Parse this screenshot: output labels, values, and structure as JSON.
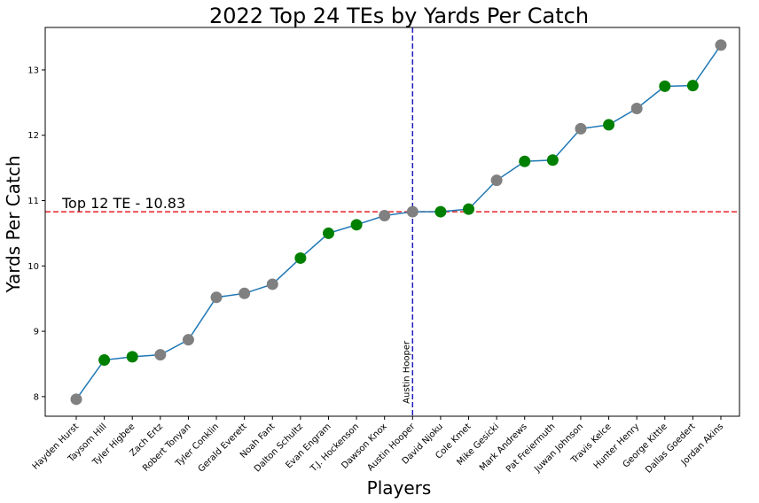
{
  "chart_data": {
    "type": "line",
    "title": "2022 Top 24 TEs by Yards Per Catch",
    "xlabel": "Players",
    "ylabel": "Yards Per Catch",
    "ylim": [
      7.7,
      13.65
    ],
    "yticks": [
      8,
      9,
      10,
      11,
      12,
      13
    ],
    "categories": [
      "Hayden Hurst",
      "Taysom Hill",
      "Tyler Higbee",
      "Zach Ertz",
      "Robert Tonyan",
      "Tyler Conklin",
      "Gerald Everett",
      "Noah Fant",
      "Dalton Schultz",
      "Evan Engram",
      "T.J. Hockenson",
      "Dawson Knox",
      "Austin Hooper",
      "David Njoku",
      "Cole Kmet",
      "Mike Gesicki",
      "Mark Andrews",
      "Pat Freiermuth",
      "Juwan Johnson",
      "Travis Kelce",
      "Hunter Henry",
      "George Kittle",
      "Dallas Goedert",
      "Jordan Akins"
    ],
    "values": [
      7.96,
      8.56,
      8.61,
      8.64,
      8.87,
      9.52,
      9.58,
      9.72,
      10.12,
      10.5,
      10.63,
      10.77,
      10.83,
      10.83,
      10.87,
      11.31,
      11.6,
      11.62,
      12.1,
      12.16,
      12.41,
      12.75,
      12.76,
      13.38
    ],
    "marker_colors": [
      "#808080",
      "#008000",
      "#008000",
      "#808080",
      "#808080",
      "#808080",
      "#808080",
      "#808080",
      "#008000",
      "#008000",
      "#008000",
      "#808080",
      "#808080",
      "#008000",
      "#008000",
      "#808080",
      "#008000",
      "#008000",
      "#808080",
      "#008000",
      "#808080",
      "#008000",
      "#008000",
      "#808080"
    ],
    "line_color": "#1f77b4",
    "hline": {
      "value": 10.83,
      "color": "#e8232b",
      "label": "Top 12 TE - 10.83"
    },
    "vline": {
      "category": "Austin Hooper",
      "color": "#1f1fbf",
      "label": "Austin Hooper"
    },
    "grid": false
  }
}
